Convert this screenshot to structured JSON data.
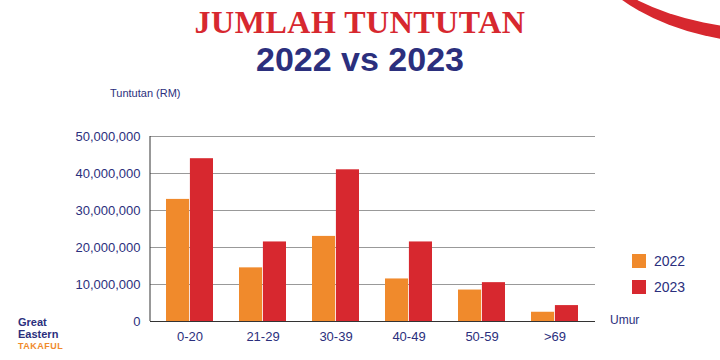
{
  "chart_data": {
    "type": "bar",
    "title": "JUMLAH TUNTUTAN",
    "subtitle": "2022 vs 2023",
    "y_label": "Tuntutan (RM)",
    "x_label": "Umur",
    "categories": [
      "0-20",
      "21-29",
      "30-39",
      "40-49",
      "50-59",
      ">69"
    ],
    "series": [
      {
        "name": "2022",
        "color": "#f08a2c",
        "values": [
          33000000,
          14500000,
          23000000,
          11500000,
          8500000,
          2500000
        ]
      },
      {
        "name": "2023",
        "color": "#d7282f",
        "values": [
          44000000,
          21500000,
          41000000,
          21500000,
          10500000,
          4300000
        ]
      }
    ],
    "ylim": [
      0,
      50000000
    ],
    "yticks": [
      0,
      {
        "value": 10000000,
        "label": "10,000,000"
      },
      {
        "value": 20000000,
        "label": "20,000,000"
      },
      {
        "value": 30000000,
        "label": "30,000,000"
      },
      {
        "value": 40000000,
        "label": "40,000,000"
      },
      {
        "value": 50000000,
        "label": "50,000,000"
      }
    ],
    "grid": true,
    "legend": "right",
    "logo": [
      "Great",
      "Eastern",
      "TAKAFUL"
    ]
  }
}
